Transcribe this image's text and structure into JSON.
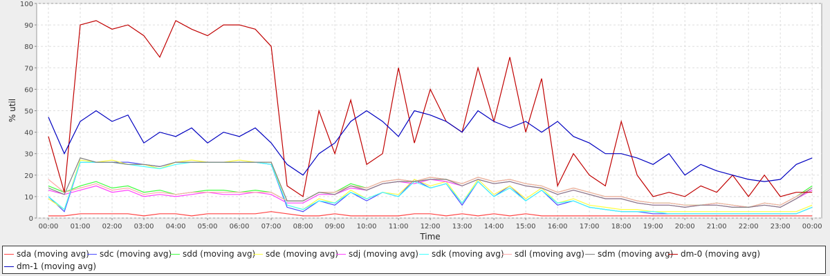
{
  "chart_data": {
    "type": "line",
    "title": "",
    "xlabel": "Time",
    "ylabel": "% util",
    "ylim": [
      0,
      100
    ],
    "xlim_hours": [
      -0.37,
      24.3
    ],
    "grid": true,
    "legend_placement": "bottom",
    "yticks": [
      "0",
      "10",
      "20",
      "30",
      "40",
      "50",
      "60",
      "70",
      "80",
      "90",
      "100"
    ],
    "xticks": [
      "00:00",
      "01:00",
      "02:00",
      "03:00",
      "04:00",
      "05:00",
      "06:00",
      "07:00",
      "08:00",
      "09:00",
      "10:00",
      "11:00",
      "12:00",
      "13:00",
      "14:00",
      "15:00",
      "16:00",
      "17:00",
      "18:00",
      "19:00",
      "20:00",
      "21:00",
      "22:00",
      "23:00",
      "00:00"
    ],
    "x_step_hours": 0.5,
    "series": [
      {
        "name": "sda (moving avg)",
        "color": "#ff4040",
        "values": [
          1,
          1,
          2,
          2,
          2,
          2,
          1,
          2,
          2,
          1,
          2,
          2,
          2,
          2,
          3,
          2,
          1,
          1,
          2,
          1,
          1,
          1,
          1,
          2,
          2,
          1,
          2,
          1,
          2,
          1,
          2,
          1,
          1,
          1,
          1,
          1,
          1,
          1,
          1,
          1,
          1,
          1,
          1,
          1,
          1,
          1,
          1,
          1,
          1
        ]
      },
      {
        "name": "sdc (moving avg)",
        "color": "#4a4aff",
        "values": [
          10,
          3,
          26,
          26,
          26,
          26,
          25,
          24,
          26,
          26,
          26,
          26,
          26,
          26,
          25,
          5,
          3,
          8,
          6,
          12,
          8,
          12,
          10,
          18,
          14,
          16,
          6,
          17,
          10,
          15,
          8,
          13,
          6,
          8,
          5,
          4,
          3,
          3,
          2,
          2,
          2,
          2,
          2,
          2,
          2,
          2,
          2,
          2,
          5
        ]
      },
      {
        "name": "sdd (moving avg)",
        "color": "#40ff40",
        "values": [
          15,
          12,
          15,
          17,
          14,
          15,
          12,
          13,
          11,
          12,
          13,
          13,
          12,
          13,
          12,
          8,
          8,
          12,
          12,
          16,
          14,
          17,
          18,
          17,
          19,
          18,
          16,
          19,
          17,
          18,
          16,
          15,
          12,
          14,
          12,
          10,
          10,
          8,
          7,
          7,
          6,
          6,
          7,
          6,
          5,
          7,
          6,
          10,
          15
        ]
      },
      {
        "name": "sde (moving avg)",
        "color": "#ffff40",
        "values": [
          9,
          4,
          27,
          26,
          27,
          25,
          25,
          23,
          26,
          27,
          26,
          26,
          27,
          26,
          26,
          6,
          4,
          9,
          7,
          13,
          9,
          12,
          11,
          18,
          15,
          17,
          7,
          18,
          11,
          15,
          9,
          14,
          7,
          9,
          6,
          5,
          4,
          4,
          3,
          3,
          3,
          3,
          3,
          3,
          3,
          3,
          3,
          3,
          6
        ]
      },
      {
        "name": "sdj (moving avg)",
        "color": "#ff40ff",
        "values": [
          13,
          11,
          13,
          15,
          12,
          13,
          10,
          11,
          10,
          11,
          12,
          11,
          11,
          12,
          11,
          7,
          7,
          11,
          11,
          14,
          13,
          16,
          17,
          16,
          18,
          17,
          15,
          18,
          16,
          17,
          15,
          14,
          11,
          13,
          11,
          9,
          9,
          7,
          6,
          6,
          5,
          6,
          6,
          5,
          5,
          6,
          5,
          9,
          13
        ]
      },
      {
        "name": "sdk (moving avg)",
        "color": "#40ffff",
        "values": [
          10,
          4,
          26,
          26,
          26,
          25,
          24,
          23,
          25,
          26,
          26,
          26,
          26,
          26,
          25,
          6,
          4,
          8,
          7,
          12,
          9,
          12,
          10,
          17,
          14,
          16,
          7,
          17,
          10,
          14,
          8,
          13,
          7,
          8,
          5,
          4,
          3,
          3,
          3,
          2,
          2,
          2,
          2,
          2,
          2,
          2,
          2,
          2,
          5
        ]
      },
      {
        "name": "sdl (moving avg)",
        "color": "#ffa8a8",
        "values": [
          18,
          12,
          14,
          16,
          13,
          14,
          11,
          12,
          11,
          12,
          12,
          12,
          12,
          12,
          12,
          8,
          8,
          12,
          12,
          15,
          14,
          17,
          18,
          17,
          19,
          18,
          16,
          19,
          17,
          18,
          16,
          15,
          12,
          14,
          12,
          10,
          10,
          8,
          7,
          7,
          6,
          6,
          7,
          6,
          5,
          7,
          6,
          10,
          14
        ]
      },
      {
        "name": "sdm (moving avg)",
        "color": "#808080",
        "values": [
          14,
          11,
          28,
          26,
          26,
          25,
          25,
          24,
          26,
          26,
          26,
          26,
          26,
          26,
          26,
          8,
          8,
          12,
          11,
          15,
          13,
          16,
          17,
          17,
          18,
          18,
          15,
          18,
          16,
          17,
          15,
          14,
          11,
          13,
          11,
          9,
          9,
          7,
          6,
          6,
          5,
          6,
          6,
          5,
          5,
          6,
          5,
          9,
          14
        ]
      },
      {
        "name": "dm-0 (moving avg)",
        "color": "#c00000",
        "values": [
          38,
          12,
          90,
          92,
          88,
          90,
          85,
          75,
          92,
          88,
          85,
          90,
          90,
          88,
          80,
          15,
          10,
          50,
          30,
          55,
          25,
          30,
          70,
          35,
          60,
          45,
          40,
          70,
          45,
          75,
          40,
          65,
          15,
          30,
          20,
          15,
          45,
          20,
          10,
          12,
          10,
          15,
          12,
          20,
          10,
          20,
          10,
          12,
          12
        ]
      },
      {
        "name": "dm-1 (moving avg)",
        "color": "#0000c0",
        "values": [
          47,
          30,
          45,
          50,
          45,
          48,
          35,
          40,
          38,
          42,
          35,
          40,
          38,
          42,
          35,
          25,
          20,
          30,
          35,
          45,
          50,
          45,
          38,
          50,
          48,
          45,
          40,
          50,
          45,
          42,
          45,
          40,
          45,
          38,
          35,
          30,
          30,
          28,
          25,
          30,
          20,
          25,
          22,
          20,
          18,
          17,
          18,
          25,
          28
        ]
      }
    ]
  }
}
